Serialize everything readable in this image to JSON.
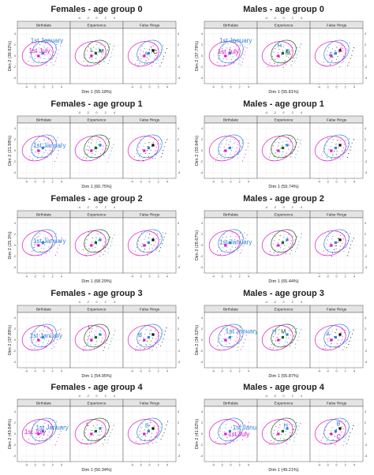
{
  "figure_colors": {
    "birthdate_1st_july": "#e014c8",
    "birthdate_1st_january": "#2f86d6",
    "experience_dark": "#1b5e20",
    "experience_light": "#1f9b2a",
    "false_rings_red": "#d41f1f",
    "false_rings_black": "#111111",
    "strip_bg": "#e4e4e4",
    "grid": "#e8e8e8"
  },
  "chart_data": [
    {
      "type": "scatter",
      "title": "Females - age group 0",
      "xlabel": "Dim 1 (55.18%)",
      "ylabel": "Dim 2 (39.92%)",
      "panels": [
        "Birthdate",
        "Experience",
        "False Rings"
      ],
      "x_ticks": [
        "-4",
        "-2",
        "0",
        "2",
        "4"
      ],
      "y_ticks": [
        "-4",
        "-2",
        "0",
        "2",
        "4"
      ],
      "xlim": [
        -6,
        6
      ],
      "ylim": [
        -5,
        5
      ],
      "labels": {
        "Birthdate": [
          {
            "text": "1st January",
            "x": -3.0,
            "y": 2.4,
            "color": "#2f86d6"
          },
          {
            "text": "1st July",
            "x": -3.4,
            "y": 0.6,
            "color": "#e014c8"
          }
        ],
        "Experience": [
          {
            "text": "L",
            "x": -1.5,
            "y": 0.8,
            "color": "#1b5e20"
          },
          {
            "text": "M",
            "x": 0.5,
            "y": 0.6,
            "color": "#1b5e20"
          }
        ],
        "False Rings": [
          {
            "text": "A",
            "x": -1.2,
            "y": 0.1,
            "color": "#2f86d6"
          },
          {
            "text": "C",
            "x": 0.8,
            "y": 0.4,
            "color": "#111111"
          }
        ]
      }
    },
    {
      "type": "scatter",
      "title": "Males - age group 0",
      "xlabel": "Dim 1 (55.81%)",
      "ylabel": "Dim 2 (37.79%)",
      "panels": [
        "Birthdate",
        "Experience",
        "False Rings"
      ],
      "x_ticks": [
        "-4",
        "-2",
        "0",
        "2",
        "4"
      ],
      "y_ticks": [
        "-4",
        "-2",
        "0",
        "2",
        "4"
      ],
      "xlim": [
        -6,
        6
      ],
      "ylim": [
        -5,
        5
      ],
      "labels": {
        "Birthdate": [
          {
            "text": "1st January",
            "x": -2.6,
            "y": 2.4,
            "color": "#2f86d6"
          },
          {
            "text": "1st July",
            "x": -3.0,
            "y": 0.4,
            "color": "#e014c8"
          }
        ],
        "Experience": [
          {
            "text": "H",
            "x": -1.4,
            "y": 1.6,
            "color": "#2f86d6"
          },
          {
            "text": "M",
            "x": 0.4,
            "y": 0.2,
            "color": "#1b5e20"
          }
        ],
        "False Rings": [
          {
            "text": "A",
            "x": -1.8,
            "y": 0.0,
            "color": "#2f86d6"
          },
          {
            "text": "C",
            "x": 0.6,
            "y": 0.8,
            "color": "#e014c8"
          }
        ]
      }
    },
    {
      "type": "scatter",
      "title": "Females - age group 1",
      "xlabel": "Dim 1 (60.75%)",
      "ylabel": "Dim 2 (21.98%)",
      "panels": [
        "Birthdate",
        "Experience",
        "False Rings"
      ],
      "x_ticks": [
        "-4",
        "-2",
        "0",
        "2",
        "4"
      ],
      "y_ticks": [
        "-4",
        "-2",
        "0",
        "2",
        "4"
      ],
      "xlim": [
        -6,
        6
      ],
      "ylim": [
        -5,
        5
      ],
      "labels": {
        "Birthdate": [
          {
            "text": "1st January",
            "x": -2.4,
            "y": 0.6,
            "color": "#2f86d6"
          }
        ],
        "Experience": [],
        "False Rings": []
      }
    },
    {
      "type": "scatter",
      "title": "Males - age group 1",
      "xlabel": "Dim 1 (59.74%)",
      "ylabel": "Dim 2 (33.84%)",
      "panels": [
        "Birthdate",
        "Experience",
        "False Rings"
      ],
      "x_ticks": [
        "-4",
        "-2",
        "0",
        "2",
        "4"
      ],
      "y_ticks": [
        "-4",
        "-2",
        "0",
        "2",
        "4"
      ],
      "xlim": [
        -6,
        6
      ],
      "ylim": [
        -5,
        5
      ],
      "labels": {
        "Birthdate": [],
        "Experience": [],
        "False Rings": []
      }
    },
    {
      "type": "scatter",
      "title": "Females - age group 2",
      "xlabel": "Dim 1 (68.29%)",
      "ylabel": "Dim 2 (25.3%)",
      "panels": [
        "Birthdate",
        "Experience",
        "False Rings"
      ],
      "x_ticks": [
        "-4",
        "-2",
        "0",
        "2",
        "4"
      ],
      "y_ticks": [
        "-4",
        "-2",
        "0",
        "2",
        "4"
      ],
      "xlim": [
        -6,
        6
      ],
      "ylim": [
        -5,
        5
      ],
      "labels": {
        "Birthdate": [
          {
            "text": "1st January",
            "x": -2.4,
            "y": 0.4,
            "color": "#2f86d6"
          }
        ],
        "Experience": [],
        "False Rings": []
      }
    },
    {
      "type": "scatter",
      "title": "Males - age group 2",
      "xlabel": "Dim 1 (65.44%)",
      "ylabel": "Dim 2 (28.67%)",
      "panels": [
        "Birthdate",
        "Experience",
        "False Rings"
      ],
      "x_ticks": [
        "-4",
        "-2",
        "0",
        "2",
        "4"
      ],
      "y_ticks": [
        "-4",
        "-2",
        "0",
        "2",
        "4"
      ],
      "xlim": [
        -6,
        6
      ],
      "ylim": [
        -5,
        5
      ],
      "labels": {
        "Birthdate": [
          {
            "text": "1st January",
            "x": -2.6,
            "y": 0.2,
            "color": "#2f86d6"
          }
        ],
        "Experience": [],
        "False Rings": []
      }
    },
    {
      "type": "scatter",
      "title": "Females - age group 3",
      "xlabel": "Dim 1 (54.95%)",
      "ylabel": "Dim 2 (37.89%)",
      "panels": [
        "Birthdate",
        "Experience",
        "False Rings"
      ],
      "x_ticks": [
        "-4",
        "-2",
        "0",
        "2",
        "4"
      ],
      "y_ticks": [
        "-4",
        "-2",
        "0",
        "2",
        "4"
      ],
      "xlim": [
        -6,
        6
      ],
      "ylim": [
        -5,
        5
      ],
      "labels": {
        "Birthdate": [
          {
            "text": "1st January",
            "x": -3.2,
            "y": 0.4,
            "color": "#2f86d6"
          }
        ],
        "Experience": [
          {
            "text": "L",
            "x": -2.0,
            "y": 2.0,
            "color": "#e014c8"
          }
        ],
        "False Rings": [
          {
            "text": "B",
            "x": -2.6,
            "y": 0.6,
            "color": "#2f86d6"
          }
        ]
      }
    },
    {
      "type": "scatter",
      "title": "Males - age group 3",
      "xlabel": "Dim 1 (55.87%)",
      "ylabel": "Dim 2 (34.52%)",
      "panels": [
        "Birthdate",
        "Experience",
        "False Rings"
      ],
      "x_ticks": [
        "-4",
        "-2",
        "0",
        "2",
        "4"
      ],
      "y_ticks": [
        "-4",
        "-2",
        "0",
        "2",
        "4"
      ],
      "xlim": [
        -6,
        6
      ],
      "ylim": [
        -5,
        5
      ],
      "labels": {
        "Birthdate": [
          {
            "text": "1st January",
            "x": -1.2,
            "y": 1.2,
            "color": "#2f86d6"
          }
        ],
        "Experience": [
          {
            "text": "H",
            "x": -2.6,
            "y": 1.2,
            "color": "#2f86d6"
          },
          {
            "text": "M",
            "x": -0.6,
            "y": 1.2,
            "color": "#1b5e20"
          }
        ],
        "False Rings": [
          {
            "text": "A",
            "x": -2.4,
            "y": 0.8,
            "color": "#2f86d6"
          }
        ]
      }
    },
    {
      "type": "scatter",
      "title": "Females - age group 4",
      "xlabel": "Dim 1 (50.34%)",
      "ylabel": "Dim 2 (43.64%)",
      "panels": [
        "Birthdate",
        "Experience",
        "False Rings"
      ],
      "x_ticks": [
        "-4",
        "-2",
        "0",
        "2",
        "4"
      ],
      "y_ticks": [
        "-4",
        "-2",
        "0",
        "2",
        "4"
      ],
      "xlim": [
        -6,
        6
      ],
      "ylim": [
        -5,
        5
      ],
      "labels": {
        "Birthdate": [
          {
            "text": "1st January",
            "x": -1.8,
            "y": 0.8,
            "color": "#2f86d6"
          },
          {
            "text": "1st July",
            "x": -4.4,
            "y": 0.0,
            "color": "#e014c8"
          }
        ],
        "Experience": [
          {
            "text": "L",
            "x": -2.4,
            "y": 1.4,
            "color": "#e014c8"
          }
        ],
        "False Rings": [
          {
            "text": "B",
            "x": -1.0,
            "y": 1.2,
            "color": "#2f86d6"
          }
        ]
      }
    },
    {
      "type": "scatter",
      "title": "Males - age group 4",
      "xlabel": "Dim 1 (49.21%)",
      "ylabel": "Dim 2 (41.62%)",
      "panels": [
        "Birthdate",
        "Experience",
        "False Rings"
      ],
      "x_ticks": [
        "-4",
        "-2",
        "0",
        "2",
        "4"
      ],
      "y_ticks": [
        "-4",
        "-2",
        "0",
        "2",
        "4"
      ],
      "xlim": [
        -6,
        6
      ],
      "ylim": [
        -5,
        5
      ],
      "labels": {
        "Birthdate": [
          {
            "text": "1st January",
            "x": 0.4,
            "y": 0.8,
            "color": "#2f86d6"
          },
          {
            "text": "1st July",
            "x": -0.6,
            "y": -0.4,
            "color": "#e014c8"
          }
        ],
        "Experience": [
          {
            "text": "H",
            "x": 0.0,
            "y": 1.2,
            "color": "#2f86d6"
          }
        ],
        "False Rings": [
          {
            "text": "B",
            "x": 0.0,
            "y": 1.6,
            "color": "#2f86d6"
          },
          {
            "text": "C",
            "x": 0.0,
            "y": -0.8,
            "color": "#e014c8"
          }
        ]
      }
    }
  ]
}
